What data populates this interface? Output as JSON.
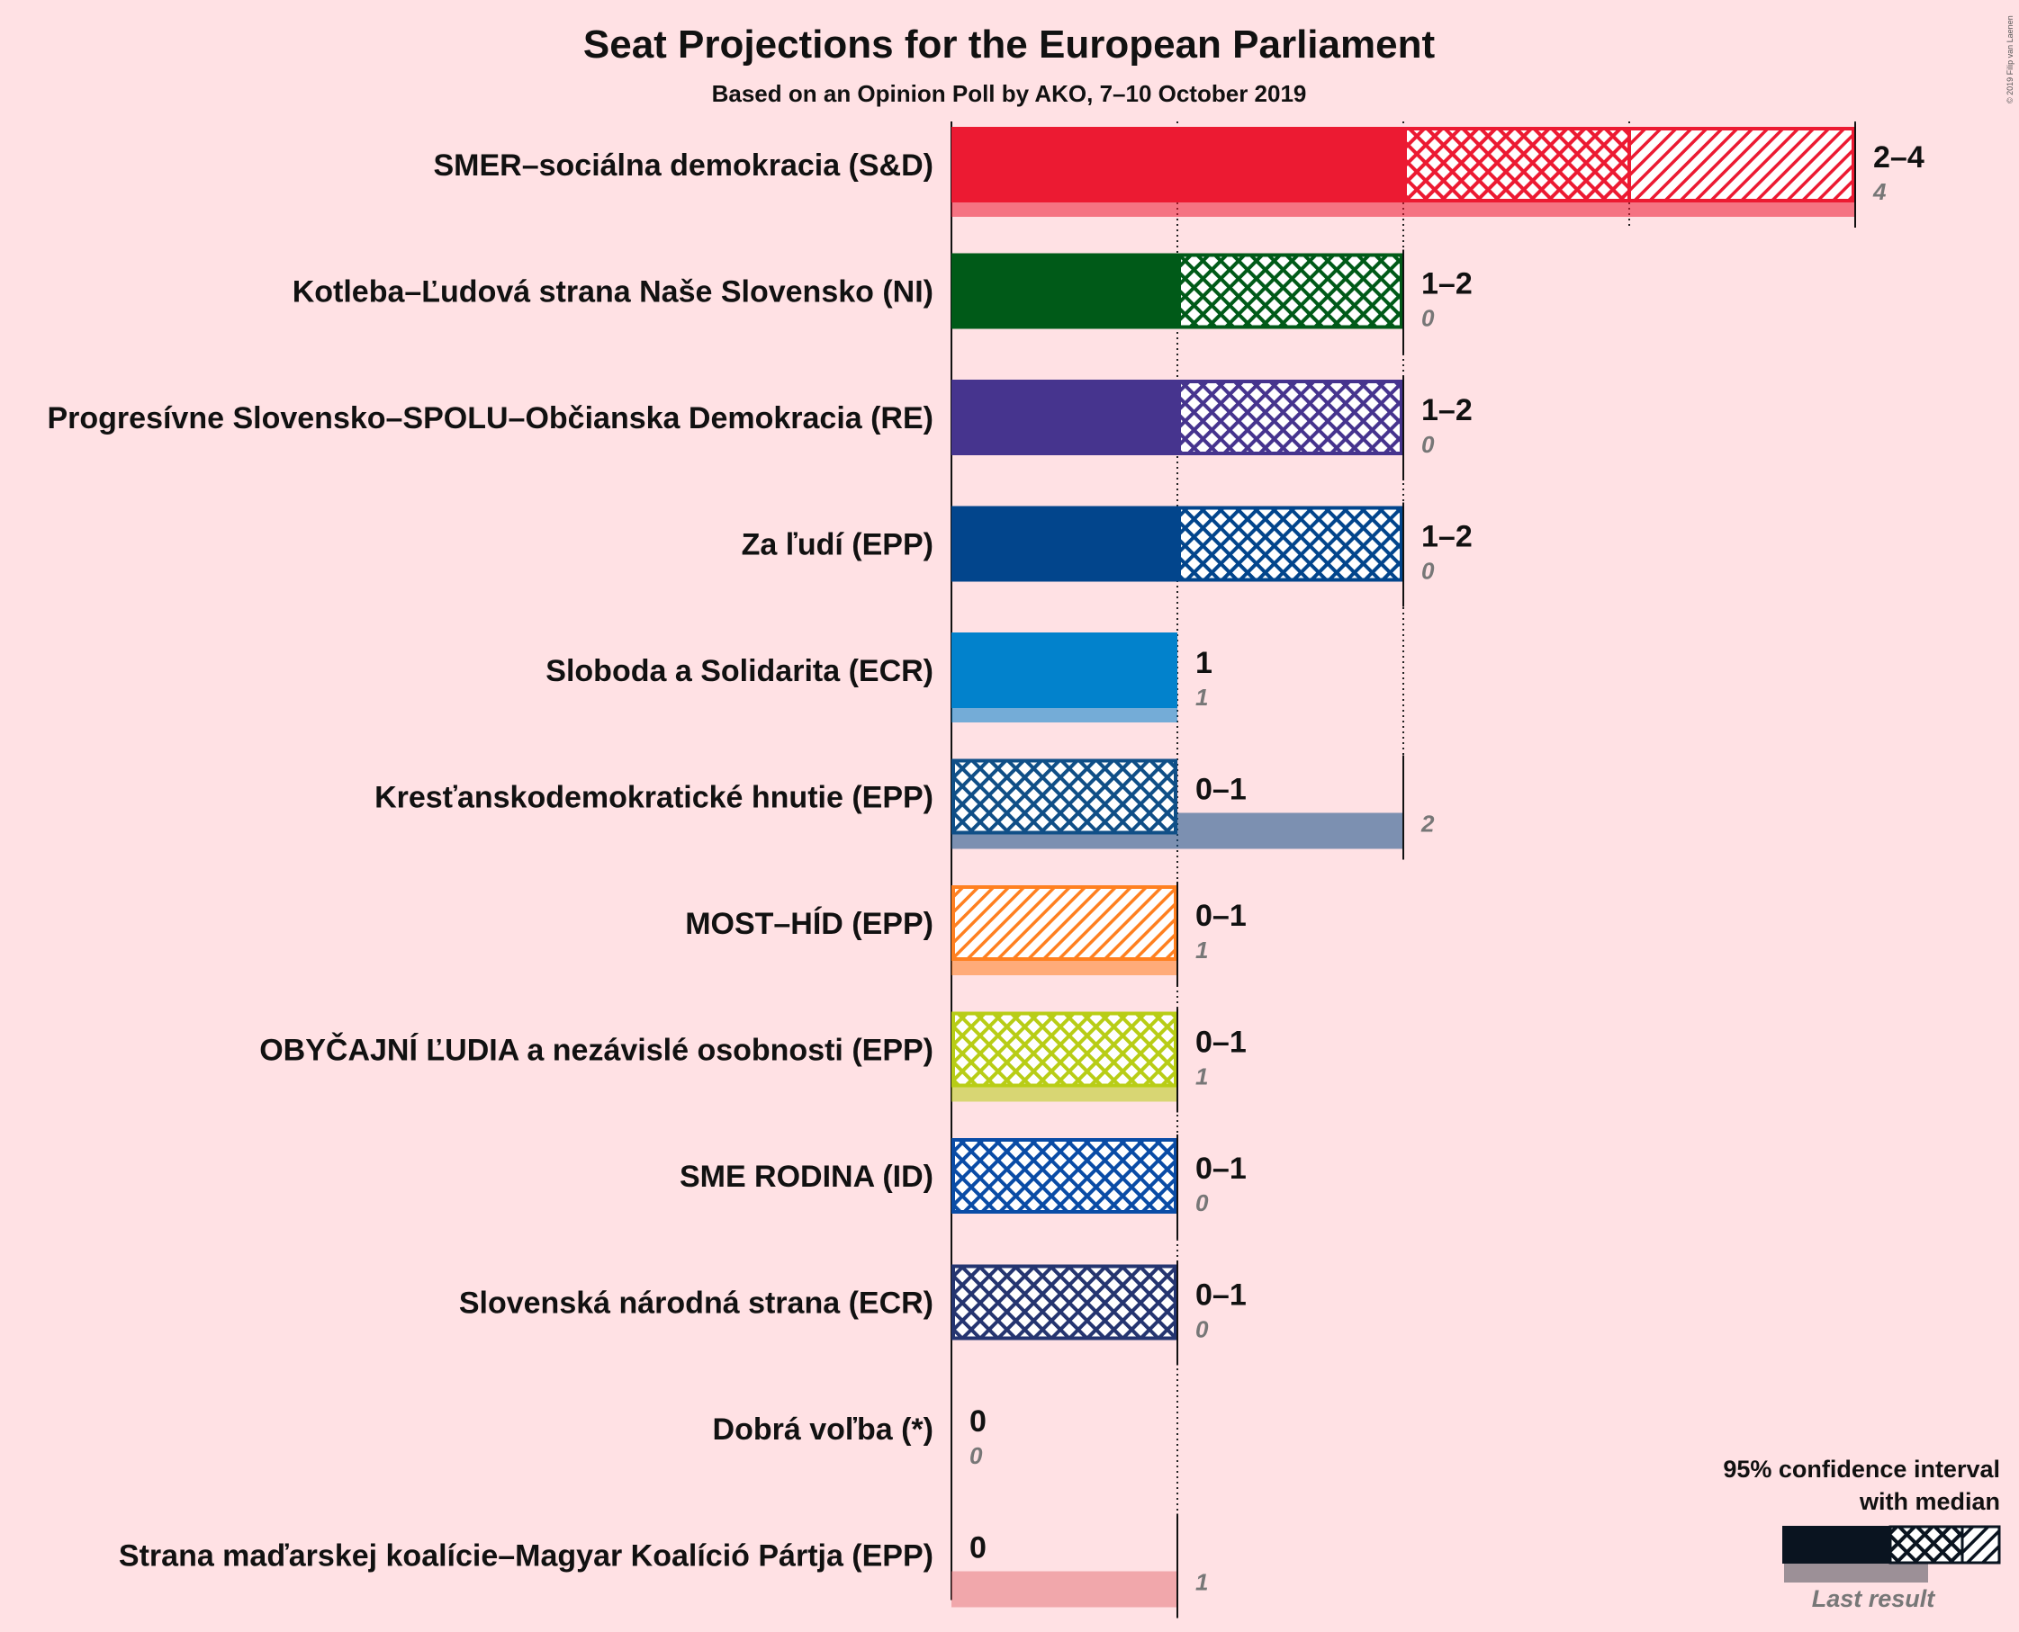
{
  "chart_data": {
    "type": "bar",
    "title": "Seat Projections for the European Parliament",
    "subtitle": "Based on an Opinion Poll by AKO, 7–10 October 2019",
    "copyright": "© 2019 Filip van Laenen",
    "xlim": [
      0,
      4
    ],
    "grid": "dotted gridline at every seat",
    "parties": [
      {
        "name": "SMER–sociálna demokracia (S&D)",
        "color": "#ec1a32",
        "low": 2,
        "median": 3,
        "high": 4,
        "range_label": "2–4",
        "last": 4,
        "last_label": "4"
      },
      {
        "name": "Kotleba–Ľudová strana Naše Slovensko (NI)",
        "color": "#005a18",
        "low": 1,
        "median": 2,
        "high": 2,
        "range_label": "1–2",
        "last": 0,
        "last_label": "0"
      },
      {
        "name": "Progresívne Slovensko–SPOLU–Občianska Demokracia (RE)",
        "color": "#46348e",
        "low": 1,
        "median": 2,
        "high": 2,
        "range_label": "1–2",
        "last": 0,
        "last_label": "0"
      },
      {
        "name": "Za ľudí (EPP)",
        "color": "#02458c",
        "low": 1,
        "median": 2,
        "high": 2,
        "range_label": "1–2",
        "last": 0,
        "last_label": "0"
      },
      {
        "name": "Sloboda a Solidarita (ECR)",
        "color": "#0282cc",
        "low": 1,
        "median": 1,
        "high": 1,
        "range_label": "1",
        "last": 1,
        "last_label": "1"
      },
      {
        "name": "Kresťanskodemokratické hnutie (EPP)",
        "color": "#104f87",
        "low": 0,
        "median": 1,
        "high": 1,
        "range_label": "0–1",
        "last": 2,
        "last_label": "2"
      },
      {
        "name": "MOST–HÍD (EPP)",
        "color": "#ff8020",
        "low": 0,
        "median": 0,
        "high": 1,
        "range_label": "0–1",
        "last": 1,
        "last_label": "1"
      },
      {
        "name": "OBYČAJNÍ ĽUDIA a nezávislé osobnosti (EPP)",
        "color": "#b8cd16",
        "low": 0,
        "median": 1,
        "high": 1,
        "range_label": "0–1",
        "last": 1,
        "last_label": "1"
      },
      {
        "name": "SME RODINA (ID)",
        "color": "#0a4ca6",
        "low": 0,
        "median": 1,
        "high": 1,
        "range_label": "0–1",
        "last": 0,
        "last_label": "0"
      },
      {
        "name": "Slovenská národná strana (ECR)",
        "color": "#253570",
        "low": 0,
        "median": 1,
        "high": 1,
        "range_label": "0–1",
        "last": 0,
        "last_label": "0"
      },
      {
        "name": "Dobrá voľba (*)",
        "color": "#888888",
        "low": 0,
        "median": 0,
        "high": 0,
        "range_label": "0",
        "last": 0,
        "last_label": "0"
      },
      {
        "name": "Strana maďarskej koalície–Magyar Koalíció Pártja (EPP)",
        "color": "#e5797c",
        "low": 0,
        "median": 0,
        "high": 0,
        "range_label": "0",
        "last": 1,
        "last_label": "1"
      }
    ],
    "legend": {
      "line1": "95% confidence interval",
      "line2": "with median",
      "last_result": "Last result",
      "position": "bottom-right"
    }
  }
}
